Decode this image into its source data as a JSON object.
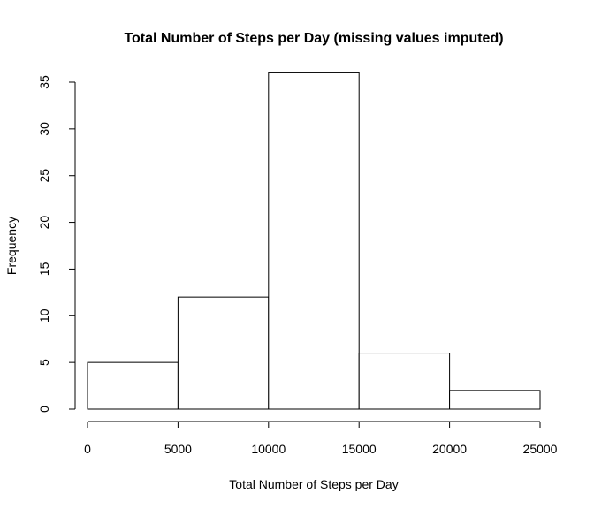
{
  "chart_data": {
    "type": "bar",
    "title": "Total Number of Steps per Day (missing values imputed)",
    "xlabel": "Total Number of Steps per Day",
    "ylabel": "Frequency",
    "bins": [
      {
        "from": 0,
        "to": 5000,
        "count": 5
      },
      {
        "from": 5000,
        "to": 10000,
        "count": 12
      },
      {
        "from": 10000,
        "to": 15000,
        "count": 36
      },
      {
        "from": 15000,
        "to": 20000,
        "count": 6
      },
      {
        "from": 20000,
        "to": 25000,
        "count": 2
      }
    ],
    "x_ticks": [
      "0",
      "5000",
      "10000",
      "15000",
      "20000",
      "25000"
    ],
    "y_ticks": [
      "0",
      "5",
      "10",
      "15",
      "20",
      "25",
      "30",
      "35"
    ],
    "xlim": [
      0,
      25000
    ],
    "ylim": [
      0,
      35
    ],
    "grid": false,
    "legend": "none",
    "bar_fill": "#ffffff",
    "bar_stroke": "#000000"
  }
}
